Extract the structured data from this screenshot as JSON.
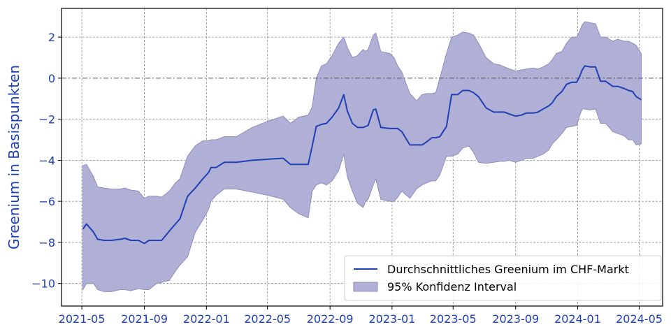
{
  "chart_data": {
    "type": "line",
    "ylabel": "Greenium in Basispunkten",
    "xlabel": "",
    "xlim": [
      "2021-03-22",
      "2024-06-16"
    ],
    "ylim": [
      -11.1,
      3.4
    ],
    "x_ticks": [
      "2021-05-01",
      "2021-09-01",
      "2022-01-01",
      "2022-05-01",
      "2022-09-01",
      "2023-01-01",
      "2023-05-01",
      "2023-09-01",
      "2024-01-01",
      "2024-05-01"
    ],
    "x_tick_labels": [
      "2021-05",
      "2021-09",
      "2022-01",
      "2022-05",
      "2022-09",
      "2023-01",
      "2023-05",
      "2023-09",
      "2024-01",
      "2024-05"
    ],
    "y_ticks": [
      2,
      0,
      -2,
      -4,
      -6,
      -8,
      -10
    ],
    "y_tick_labels": [
      "2",
      "0",
      "−2",
      "−4",
      "−6",
      "−8",
      "−10"
    ],
    "reference_line": {
      "y": 0,
      "style": "dash-dot"
    },
    "grid": true,
    "legend_position": "lower-right",
    "colors": {
      "line": "#1f3fb4",
      "band": "#b0b0d6",
      "band_edge": "#8c8cbf",
      "axis_label": "#1f3fb4",
      "tick_label": "#1f3fb4"
    },
    "series": [
      {
        "name": "Durchschnittliches Greenium im CHF-Markt",
        "kind": "line",
        "x": [
          "2021-05-03",
          "2021-05-10",
          "2021-05-24",
          "2021-06-01",
          "2021-06-14",
          "2021-06-28",
          "2021-07-15",
          "2021-07-25",
          "2021-08-05",
          "2021-08-20",
          "2021-09-01",
          "2021-09-10",
          "2021-09-25",
          "2021-10-05",
          "2021-10-20",
          "2021-11-01",
          "2021-11-10",
          "2021-11-25",
          "2021-12-10",
          "2021-12-25",
          "2022-01-05",
          "2022-01-10",
          "2022-01-20",
          "2022-02-05",
          "2022-03-01",
          "2022-04-01",
          "2022-05-01",
          "2022-06-01",
          "2022-06-15",
          "2022-07-01",
          "2022-07-20",
          "2022-07-28",
          "2022-08-05",
          "2022-08-15",
          "2022-08-25",
          "2022-09-05",
          "2022-09-18",
          "2022-09-28",
          "2022-10-05",
          "2022-10-15",
          "2022-10-25",
          "2022-11-05",
          "2022-11-10",
          "2022-11-15",
          "2022-11-25",
          "2022-11-30",
          "2022-12-10",
          "2022-12-28",
          "2023-01-05",
          "2023-01-12",
          "2023-01-20",
          "2023-02-05",
          "2023-02-18",
          "2023-03-01",
          "2023-03-10",
          "2023-03-20",
          "2023-03-28",
          "2023-04-05",
          "2023-04-18",
          "2023-04-28",
          "2023-05-10",
          "2023-05-20",
          "2023-06-01",
          "2023-06-10",
          "2023-06-20",
          "2023-07-05",
          "2023-07-20",
          "2023-08-01",
          "2023-08-10",
          "2023-08-20",
          "2023-09-01",
          "2023-09-12",
          "2023-09-22",
          "2023-10-05",
          "2023-10-15",
          "2023-10-25",
          "2023-11-05",
          "2023-11-12",
          "2023-11-20",
          "2023-12-01",
          "2023-12-10",
          "2023-12-20",
          "2023-12-30",
          "2024-01-05",
          "2024-01-10",
          "2024-01-15",
          "2024-01-25",
          "2024-02-05",
          "2024-02-15",
          "2024-02-25",
          "2024-03-10",
          "2024-03-20",
          "2024-04-01",
          "2024-04-10",
          "2024-04-18",
          "2024-04-25",
          "2024-05-05"
        ],
        "y": [
          -7.35,
          -7.1,
          -7.5,
          -7.85,
          -7.9,
          -7.9,
          -7.85,
          -7.8,
          -7.9,
          -7.9,
          -8.05,
          -7.9,
          -7.9,
          -7.9,
          -7.45,
          -7.1,
          -6.85,
          -5.75,
          -5.35,
          -4.9,
          -4.6,
          -4.35,
          -4.35,
          -4.1,
          -4.1,
          -4.0,
          -3.95,
          -3.9,
          -4.2,
          -4.2,
          -4.2,
          -3.3,
          -2.35,
          -2.25,
          -2.2,
          -1.9,
          -1.45,
          -0.8,
          -1.6,
          -2.2,
          -2.4,
          -2.4,
          -2.35,
          -2.3,
          -1.55,
          -1.5,
          -2.4,
          -2.45,
          -2.45,
          -2.45,
          -2.6,
          -3.25,
          -3.25,
          -3.25,
          -3.1,
          -2.9,
          -2.9,
          -2.85,
          -2.35,
          -0.8,
          -0.8,
          -0.6,
          -0.6,
          -0.7,
          -0.9,
          -1.45,
          -1.65,
          -1.65,
          -1.65,
          -1.75,
          -1.85,
          -1.8,
          -1.7,
          -1.7,
          -1.65,
          -1.5,
          -1.35,
          -1.2,
          -0.9,
          -0.65,
          -0.3,
          -0.2,
          -0.2,
          0.1,
          0.4,
          0.6,
          0.55,
          0.55,
          -0.15,
          -0.15,
          -0.4,
          -0.4,
          -0.5,
          -0.6,
          -0.65,
          -0.9,
          -1.05
        ]
      },
      {
        "name": "95% Konfidenz Interval",
        "kind": "band",
        "x": [
          "2021-05-03",
          "2021-05-10",
          "2021-05-24",
          "2021-06-01",
          "2021-06-14",
          "2021-06-28",
          "2021-07-15",
          "2021-07-25",
          "2021-08-05",
          "2021-08-20",
          "2021-09-01",
          "2021-09-10",
          "2021-09-25",
          "2021-10-05",
          "2021-10-20",
          "2021-11-01",
          "2021-11-10",
          "2021-11-25",
          "2021-12-10",
          "2021-12-25",
          "2022-01-05",
          "2022-01-10",
          "2022-01-20",
          "2022-02-05",
          "2022-03-01",
          "2022-04-01",
          "2022-05-01",
          "2022-06-01",
          "2022-06-15",
          "2022-07-01",
          "2022-07-20",
          "2022-07-28",
          "2022-08-05",
          "2022-08-15",
          "2022-08-25",
          "2022-09-05",
          "2022-09-18",
          "2022-09-28",
          "2022-10-05",
          "2022-10-15",
          "2022-10-25",
          "2022-11-05",
          "2022-11-10",
          "2022-11-15",
          "2022-11-25",
          "2022-11-30",
          "2022-12-10",
          "2022-12-28",
          "2023-01-05",
          "2023-01-12",
          "2023-01-20",
          "2023-02-05",
          "2023-02-18",
          "2023-03-01",
          "2023-03-10",
          "2023-03-20",
          "2023-03-28",
          "2023-04-05",
          "2023-04-18",
          "2023-04-28",
          "2023-05-10",
          "2023-05-20",
          "2023-06-01",
          "2023-06-10",
          "2023-06-20",
          "2023-07-05",
          "2023-07-20",
          "2023-08-01",
          "2023-08-10",
          "2023-08-20",
          "2023-09-01",
          "2023-09-12",
          "2023-09-22",
          "2023-10-05",
          "2023-10-15",
          "2023-10-25",
          "2023-11-05",
          "2023-11-12",
          "2023-11-20",
          "2023-12-01",
          "2023-12-10",
          "2023-12-20",
          "2023-12-30",
          "2024-01-05",
          "2024-01-10",
          "2024-01-15",
          "2024-01-25",
          "2024-02-05",
          "2024-02-15",
          "2024-02-25",
          "2024-03-10",
          "2024-03-20",
          "2024-04-01",
          "2024-04-10",
          "2024-04-18",
          "2024-04-25",
          "2024-05-05"
        ],
        "upper": [
          -4.25,
          -4.2,
          -4.8,
          -5.3,
          -5.35,
          -5.4,
          -5.4,
          -5.35,
          -5.45,
          -5.5,
          -5.85,
          -5.75,
          -5.75,
          -5.8,
          -5.5,
          -5.1,
          -4.9,
          -3.8,
          -3.3,
          -3.05,
          -3.05,
          -3.0,
          -3.0,
          -2.85,
          -2.85,
          -2.4,
          -2.1,
          -1.85,
          -2.2,
          -1.9,
          -1.8,
          -1.4,
          0.0,
          0.6,
          0.7,
          1.1,
          1.7,
          2.0,
          1.5,
          1.0,
          1.1,
          1.4,
          1.3,
          1.4,
          2.1,
          2.2,
          1.3,
          1.2,
          1.0,
          0.6,
          0.3,
          -0.75,
          -1.1,
          -0.8,
          -0.75,
          -0.75,
          -0.7,
          0.0,
          1.2,
          2.0,
          2.1,
          2.25,
          2.2,
          2.1,
          1.7,
          1.0,
          0.7,
          0.65,
          0.55,
          0.45,
          0.35,
          0.4,
          0.45,
          0.5,
          0.45,
          0.55,
          0.7,
          0.9,
          1.2,
          1.3,
          1.7,
          2.0,
          2.0,
          2.3,
          2.6,
          2.75,
          2.7,
          2.65,
          2.0,
          2.0,
          1.8,
          1.9,
          1.8,
          1.8,
          1.7,
          1.6,
          1.2
        ],
        "lower": [
          -10.3,
          -10.0,
          -10.0,
          -10.3,
          -10.4,
          -10.4,
          -10.3,
          -10.3,
          -10.35,
          -10.25,
          -10.3,
          -10.3,
          -10.0,
          -9.95,
          -9.85,
          -9.4,
          -9.1,
          -8.7,
          -7.5,
          -6.9,
          -6.4,
          -6.0,
          -5.7,
          -5.4,
          -5.4,
          -5.55,
          -5.7,
          -5.9,
          -6.3,
          -6.6,
          -6.8,
          -5.5,
          -5.2,
          -5.1,
          -5.2,
          -5.0,
          -4.5,
          -3.7,
          -4.8,
          -5.5,
          -6.1,
          -6.3,
          -6.0,
          -5.9,
          -5.2,
          -4.9,
          -5.9,
          -6.0,
          -6.0,
          -5.8,
          -5.5,
          -5.85,
          -5.4,
          -5.2,
          -5.1,
          -5.0,
          -5.0,
          -4.7,
          -3.8,
          -3.8,
          -3.7,
          -3.4,
          -3.3,
          -3.6,
          -4.1,
          -4.15,
          -4.1,
          -4.05,
          -4.05,
          -4.0,
          -4.1,
          -4.0,
          -3.9,
          -3.9,
          -3.8,
          -3.7,
          -3.5,
          -3.2,
          -3.0,
          -2.7,
          -2.4,
          -2.35,
          -2.3,
          -1.8,
          -1.5,
          -1.5,
          -1.55,
          -1.5,
          -2.2,
          -2.2,
          -2.6,
          -2.7,
          -2.8,
          -3.0,
          -3.0,
          -3.25,
          -3.2
        ]
      }
    ]
  }
}
